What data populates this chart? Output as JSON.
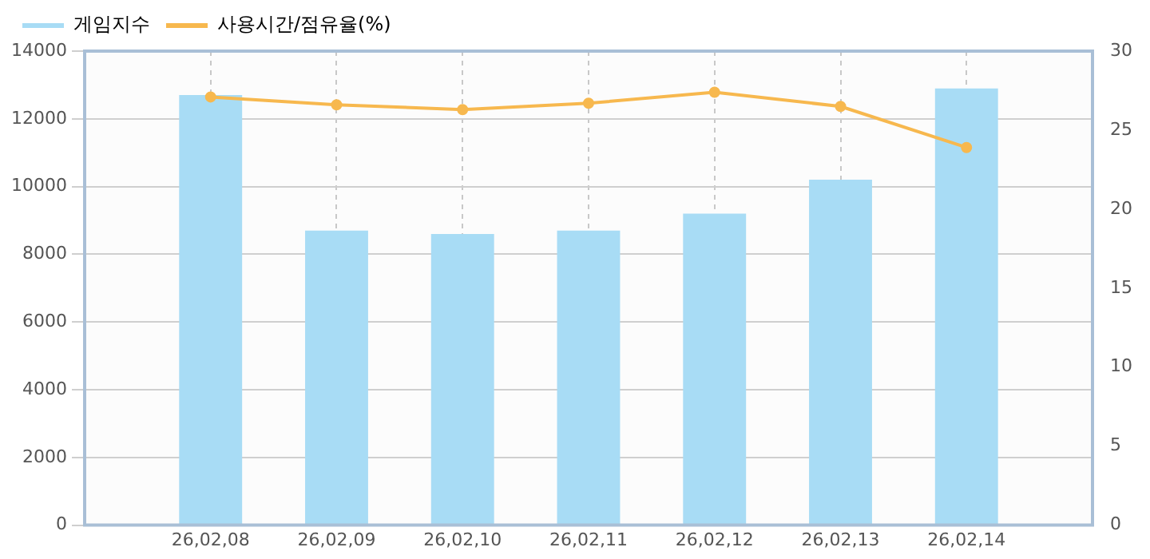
{
  "chart_data": {
    "type": "bar",
    "categories": [
      "26,02,08",
      "26,02,09",
      "26,02,10",
      "26,02,11",
      "26,02,12",
      "26,02,13",
      "26,02,14"
    ],
    "series": [
      {
        "name": "게임지수",
        "color": "#a8dcf5",
        "values": [
          12700,
          8700,
          8600,
          8700,
          9200,
          10200,
          12900
        ]
      },
      {
        "name": "사용시간/점유율(%)",
        "type": "line",
        "axis": "y2",
        "color": "#f7b84e",
        "values": [
          27.1,
          26.6,
          26.3,
          26.7,
          27.4,
          26.5,
          23.9
        ]
      }
    ],
    "ylim": [
      0,
      14000
    ],
    "yticks": [
      0,
      2000,
      4000,
      6000,
      8000,
      10000,
      12000,
      14000
    ],
    "y2lim": [
      0,
      30
    ],
    "y2ticks": [
      0,
      5,
      10,
      15,
      20,
      25,
      30
    ],
    "grid": true,
    "legend": "top left",
    "marker": "circle",
    "line_style": "solid"
  }
}
